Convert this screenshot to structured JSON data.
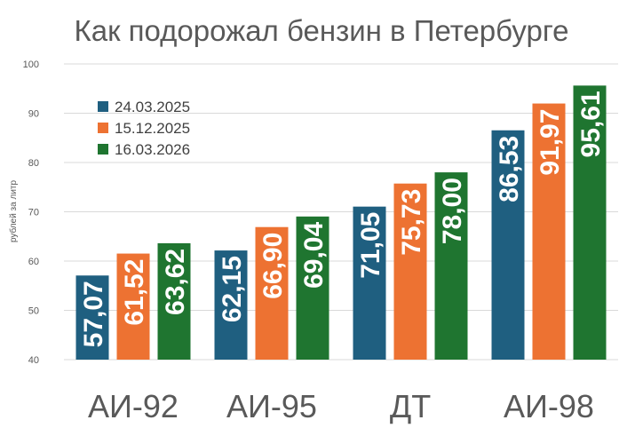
{
  "chart_data": {
    "type": "bar",
    "title": "Как подорожал бензин в Петербурге",
    "ylabel": "рублей за литр",
    "xlabel": "",
    "ylim": [
      40,
      100
    ],
    "yticks": [
      40,
      50,
      60,
      70,
      80,
      90,
      100
    ],
    "grid": true,
    "legend_position": "top-left",
    "categories": [
      "АИ-92",
      "АИ-95",
      "ДТ",
      "АИ-98"
    ],
    "series": [
      {
        "name": "24.03.2025",
        "color": "#1f5f80",
        "values": [
          57.07,
          62.15,
          71.05,
          86.53
        ],
        "labels": [
          "57,07",
          "62,15",
          "71,05",
          "86,53"
        ]
      },
      {
        "name": "15.12.2025",
        "color": "#ed7232",
        "values": [
          61.52,
          66.9,
          75.73,
          91.97
        ],
        "labels": [
          "61,52",
          "66,90",
          "75,73",
          "91,97"
        ]
      },
      {
        "name": "16.03.2026",
        "color": "#1f7530",
        "values": [
          63.62,
          69.04,
          78.0,
          95.61
        ],
        "labels": [
          "63,62",
          "69,04",
          "78,00",
          "95,61"
        ]
      }
    ]
  }
}
